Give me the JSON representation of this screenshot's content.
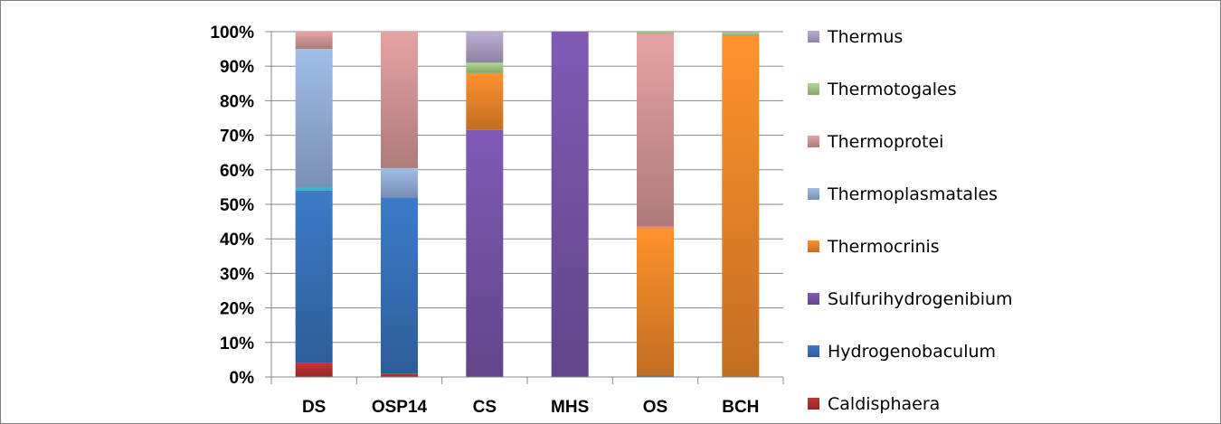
{
  "chart_data": {
    "type": "bar",
    "stacked": true,
    "normalized": true,
    "title": "",
    "xlabel": "",
    "ylabel": "",
    "ylim": [
      0,
      100
    ],
    "y_ticks": [
      "0%",
      "10%",
      "20%",
      "30%",
      "40%",
      "50%",
      "60%",
      "70%",
      "80%",
      "90%",
      "100%"
    ],
    "categories": [
      "DS",
      "OSP14",
      "CS",
      "MHS",
      "OS",
      "BCH"
    ],
    "legend_position": "right",
    "series": [
      {
        "name": "Caldisphaera",
        "color": "#b8322f",
        "values": [
          4,
          1,
          0,
          0,
          0,
          0
        ]
      },
      {
        "name": "Hydrogenobaculum",
        "color": "#3a74be",
        "values": [
          50,
          51,
          0,
          0,
          0.5,
          0
        ]
      },
      {
        "name": "Sulfurihydrogenibium",
        "color": "#7a55ab",
        "values": [
          0,
          0,
          71.5,
          100,
          0,
          0
        ]
      },
      {
        "name": "Thermocrinis",
        "color": "#f28a2a",
        "values": [
          0,
          0,
          16.5,
          0,
          43,
          98.8
        ]
      },
      {
        "name": "Thermoplasmatales",
        "color": "#97b3dc",
        "values": [
          41,
          8.5,
          0,
          0,
          0,
          0
        ]
      },
      {
        "name": "Thermoprotei",
        "color": "#d99a9a",
        "values": [
          5,
          39.5,
          0,
          0,
          56,
          0
        ]
      },
      {
        "name": "Thermotogales",
        "color": "#a6cd87",
        "values": [
          0,
          0,
          3,
          0,
          0.5,
          1
        ]
      },
      {
        "name": "Thermus",
        "color": "#b1a3c9",
        "values": [
          0,
          0,
          9,
          0,
          0,
          0.2
        ]
      }
    ],
    "extra_slivers": [
      {
        "category": "DS",
        "color": "#3fb3c9",
        "from": 54,
        "to": 55
      }
    ]
  }
}
